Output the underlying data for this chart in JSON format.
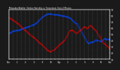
{
  "title": "Milwaukee Weather  Outdoor Humidity vs. Temperature  Every 5 Minutes",
  "bg_color": "#1a1a1a",
  "plot_bg_color": "#1a1a1a",
  "grid_color": "#ffffff",
  "red_color": "#dd0000",
  "blue_color": "#0044ff",
  "y_min": 10,
  "y_max": 90,
  "right_yticks": [
    10,
    20,
    30,
    40,
    50,
    60,
    70,
    80,
    90
  ],
  "right_yticklabels": [
    "10",
    "20",
    "30",
    "40",
    "50",
    "60",
    "70",
    "80",
    "90"
  ],
  "humidity_x": [
    0,
    1,
    2,
    3,
    4,
    5,
    6,
    7,
    8,
    9,
    10,
    11,
    12,
    13,
    14,
    15,
    16,
    17,
    18,
    19,
    20,
    21,
    22,
    23,
    24,
    25,
    26,
    27,
    28,
    29,
    30,
    31,
    32,
    33,
    34,
    35,
    36,
    37,
    38,
    39,
    40,
    41,
    42,
    43,
    44,
    45,
    46,
    47,
    48,
    49,
    50,
    51,
    52,
    53,
    54,
    55,
    56,
    57,
    58,
    59,
    60,
    61,
    62,
    63,
    64,
    65,
    66,
    67,
    68,
    69,
    70,
    71,
    72,
    73,
    74,
    75,
    76,
    77,
    78,
    79,
    80,
    81,
    82,
    83,
    84,
    85,
    86,
    87,
    88,
    89,
    90,
    91,
    92,
    93,
    94,
    95,
    96,
    97,
    98,
    99,
    100,
    101,
    102,
    103,
    104,
    105,
    106,
    107,
    108,
    109,
    110,
    111,
    112,
    113,
    114,
    115,
    116,
    117,
    118,
    119,
    120,
    121,
    122,
    123,
    124,
    125,
    126,
    127,
    128,
    129,
    130,
    131,
    132,
    133,
    134,
    135,
    136,
    137,
    138,
    139,
    140,
    141,
    142,
    143
  ],
  "humidity_y": [
    52,
    52,
    53,
    53,
    54,
    55,
    55,
    55,
    55,
    56,
    56,
    57,
    57,
    57,
    57,
    58,
    58,
    58,
    59,
    59,
    60,
    60,
    60,
    61,
    61,
    61,
    62,
    62,
    62,
    63,
    63,
    64,
    64,
    65,
    65,
    65,
    66,
    67,
    68,
    69,
    70,
    71,
    72,
    73,
    74,
    75,
    76,
    77,
    78,
    79,
    80,
    81,
    81,
    82,
    82,
    83,
    83,
    83,
    83,
    83,
    83,
    83,
    82,
    82,
    82,
    82,
    82,
    82,
    82,
    82,
    81,
    81,
    81,
    81,
    81,
    80,
    80,
    80,
    80,
    80,
    79,
    79,
    78,
    78,
    77,
    77,
    76,
    76,
    75,
    74,
    73,
    72,
    71,
    70,
    69,
    68,
    67,
    65,
    63,
    61,
    59,
    57,
    55,
    53,
    51,
    49,
    47,
    45,
    43,
    41,
    39,
    38,
    37,
    36,
    36,
    37,
    38,
    38,
    38,
    38,
    38,
    39,
    40,
    41,
    41,
    40,
    40,
    40,
    40,
    39,
    39,
    39,
    40,
    41,
    42,
    43,
    43,
    42,
    42,
    42,
    42,
    42,
    42,
    42
  ],
  "temp_x": [
    0,
    1,
    2,
    3,
    4,
    5,
    6,
    7,
    8,
    9,
    10,
    11,
    12,
    13,
    14,
    15,
    16,
    17,
    18,
    19,
    20,
    21,
    22,
    23,
    24,
    25,
    26,
    27,
    28,
    29,
    30,
    31,
    32,
    33,
    34,
    35,
    36,
    37,
    38,
    39,
    40,
    41,
    42,
    43,
    44,
    45,
    46,
    47,
    48,
    49,
    50,
    51,
    52,
    53,
    54,
    55,
    56,
    57,
    58,
    59,
    60,
    61,
    62,
    63,
    64,
    65,
    66,
    67,
    68,
    69,
    70,
    71,
    72,
    73,
    74,
    75,
    76,
    77,
    78,
    79,
    80,
    81,
    82,
    83,
    84,
    85,
    86,
    87,
    88,
    89,
    90,
    91,
    92,
    93,
    94,
    95,
    96,
    97,
    98,
    99,
    100,
    101,
    102,
    103,
    104,
    105,
    106,
    107,
    108,
    109,
    110,
    111,
    112,
    113,
    114,
    115,
    116,
    117,
    118,
    119,
    120,
    121,
    122,
    123,
    124,
    125,
    126,
    127,
    128,
    129,
    130,
    131,
    132,
    133,
    134,
    135,
    136,
    137,
    138,
    139,
    140,
    141,
    142,
    143
  ],
  "temp_y": [
    76,
    76,
    75,
    75,
    74,
    73,
    73,
    72,
    71,
    71,
    70,
    69,
    68,
    67,
    66,
    65,
    64,
    63,
    62,
    61,
    60,
    59,
    58,
    57,
    56,
    55,
    54,
    53,
    52,
    51,
    50,
    49,
    48,
    47,
    46,
    45,
    44,
    43,
    42,
    41,
    40,
    39,
    38,
    37,
    36,
    35,
    34,
    33,
    32,
    31,
    30,
    29,
    28,
    27,
    26,
    25,
    24,
    23,
    22,
    22,
    22,
    23,
    24,
    25,
    26,
    27,
    28,
    29,
    30,
    31,
    32,
    33,
    34,
    35,
    36,
    37,
    38,
    39,
    40,
    41,
    43,
    45,
    47,
    49,
    51,
    53,
    55,
    56,
    57,
    57,
    57,
    56,
    55,
    54,
    53,
    52,
    52,
    53,
    54,
    55,
    56,
    57,
    58,
    59,
    60,
    61,
    62,
    62,
    62,
    61,
    60,
    60,
    61,
    62,
    63,
    64,
    64,
    63,
    62,
    61,
    60,
    59,
    58,
    57,
    55,
    53,
    51,
    49,
    47,
    45,
    43,
    41,
    39,
    37,
    36,
    35,
    34,
    33,
    32,
    31,
    30,
    29,
    28,
    27
  ],
  "n_xticks": 25,
  "xtick_labels": [
    "12a",
    "",
    "2",
    "",
    "4",
    "",
    "6",
    "",
    "8",
    "",
    "10",
    "",
    "12p",
    "",
    "2",
    "",
    "4",
    "",
    "6",
    "",
    "8",
    "",
    "10",
    "",
    "12a"
  ]
}
